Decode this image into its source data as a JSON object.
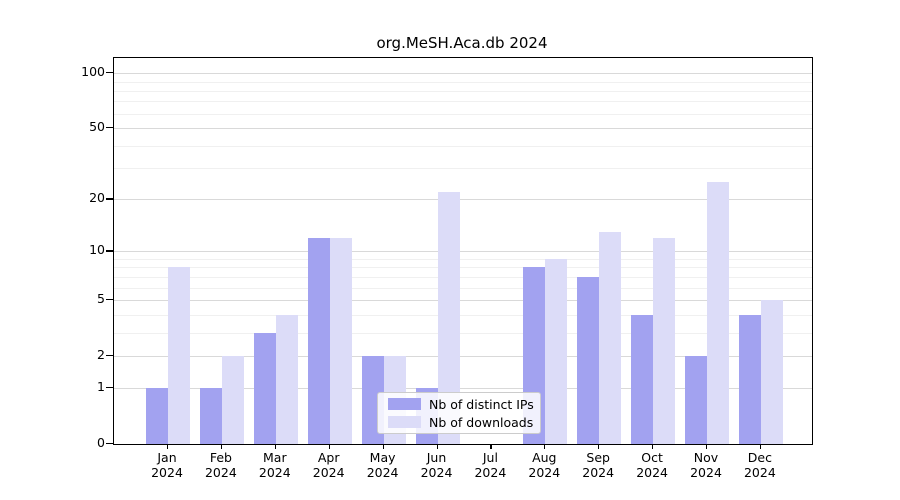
{
  "chart_data": {
    "type": "bar",
    "title": "org.MeSH.Aca.db 2024",
    "categories": [
      "Jan",
      "Feb",
      "Mar",
      "Apr",
      "May",
      "Jun",
      "Jul",
      "Aug",
      "Sep",
      "Oct",
      "Nov",
      "Dec"
    ],
    "year_label": "2024",
    "series": [
      {
        "name": "Nb of distinct IPs",
        "color": "#a2a2f0",
        "values": [
          1,
          1,
          3,
          12,
          2,
          1,
          0,
          8,
          7,
          4,
          2,
          4
        ]
      },
      {
        "name": "Nb of downloads",
        "color": "#dcdcf8",
        "values": [
          8,
          2,
          4,
          12,
          2,
          22,
          0,
          9,
          13,
          12,
          25,
          5
        ]
      }
    ],
    "y_axis": {
      "scale": "log1p",
      "ticks": [
        0,
        1,
        2,
        5,
        10,
        20,
        50,
        100
      ],
      "minor_ticks": [
        3,
        4,
        6,
        7,
        8,
        9,
        30,
        40,
        60,
        70,
        80,
        90
      ],
      "ylim": [
        0,
        121
      ]
    },
    "x_axis": {
      "tick_label_lines": 2
    },
    "legend": {
      "position": "lower-center"
    },
    "grid": true
  },
  "colors": {
    "background": "#ffffff",
    "axis": "#000000",
    "grid_major": "#d9d9d9",
    "grid_minor": "#f0f0f0",
    "legend_border": "#cccccc",
    "ips_bar": "#a2a2f0",
    "downloads_bar": "#dcdcf8"
  }
}
